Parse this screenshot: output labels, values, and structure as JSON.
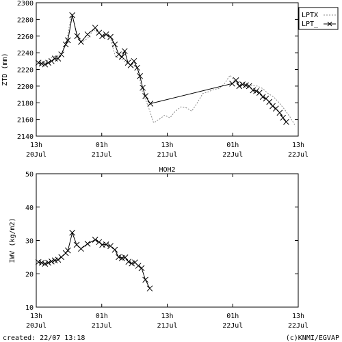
{
  "chart_data": [
    {
      "type": "line",
      "xlabel": "",
      "ylabel": "ZTD (mm)",
      "ylim": [
        2140,
        2300
      ],
      "y_ticks": [
        2140,
        2160,
        2180,
        2200,
        2220,
        2240,
        2260,
        2280,
        2300
      ],
      "x_ticks": [
        {
          "top": "13h",
          "bottom": "20Jul"
        },
        {
          "top": "01h",
          "bottom": "21Jul"
        },
        {
          "top": "13h",
          "bottom": "21Jul"
        },
        {
          "top": "01h",
          "bottom": "22Jul"
        },
        {
          "top": "13h",
          "bottom": "22Jul"
        }
      ],
      "x_unit": "hours since 20 Jul 13:00",
      "xlim": [
        0,
        48
      ],
      "legend_position": "top-right",
      "series": [
        {
          "name": "LPTX",
          "style": "dashed",
          "color": "#888888",
          "points": [
            [
              0.5,
              2230
            ],
            [
              1.5,
              2228
            ],
            [
              2.5,
              2233
            ],
            [
              3.5,
              2236
            ],
            [
              4.5,
              2238
            ],
            [
              5.5,
              2252
            ],
            [
              6.5,
              2287
            ],
            [
              7.5,
              2262
            ],
            [
              8.5,
              2253
            ],
            [
              9.5,
              2258
            ],
            [
              10.5,
              2268
            ],
            [
              11.5,
              2262
            ],
            [
              12.5,
              2262
            ],
            [
              13.5,
              2260
            ],
            [
              14.5,
              2235
            ],
            [
              15.5,
              2233
            ],
            [
              16.5,
              2228
            ],
            [
              17.5,
              2226
            ],
            [
              18.5,
              2222
            ],
            [
              19.5,
              2192
            ],
            [
              20.5,
              2176
            ],
            [
              21.5,
              2156
            ],
            [
              22.5,
              2160
            ],
            [
              23.5,
              2165
            ],
            [
              24.5,
              2162
            ],
            [
              25.5,
              2170
            ],
            [
              26.5,
              2175
            ],
            [
              27.5,
              2174
            ],
            [
              28.5,
              2170
            ],
            [
              29.5,
              2180
            ],
            [
              30.5,
              2191
            ],
            [
              31.5,
              2193
            ],
            [
              32.5,
              2196
            ],
            [
              33.5,
              2197
            ],
            [
              34.5,
              2203
            ],
            [
              35.5,
              2213
            ],
            [
              36.5,
              2205
            ],
            [
              37.5,
              2205
            ],
            [
              38.5,
              2197
            ],
            [
              39.5,
              2201
            ],
            [
              40.5,
              2200
            ],
            [
              41.5,
              2197
            ],
            [
              42.5,
              2191
            ],
            [
              43.5,
              2187
            ],
            [
              44.5,
              2180
            ],
            [
              45.5,
              2172
            ],
            [
              46.5,
              2163
            ],
            [
              47.5,
              2152
            ]
          ]
        },
        {
          "name": "LPT_",
          "style": "solid-with-cross",
          "color": "#000000",
          "points": [
            [
              0.4,
              2228
            ],
            [
              1.0,
              2227
            ],
            [
              1.6,
              2226
            ],
            [
              2.2,
              2228
            ],
            [
              2.8,
              2230
            ],
            [
              3.4,
              2233
            ],
            [
              4.0,
              2233
            ],
            [
              4.6,
              2238
            ],
            [
              5.4,
              2250
            ],
            [
              5.8,
              2255
            ],
            [
              6.6,
              2285
            ],
            [
              7.5,
              2260
            ],
            [
              8.2,
              2253
            ],
            [
              9.4,
              2262
            ],
            [
              10.8,
              2270
            ],
            [
              11.5,
              2264
            ],
            [
              12.1,
              2260
            ],
            [
              12.8,
              2262
            ],
            [
              13.6,
              2259
            ],
            [
              14.4,
              2250
            ],
            [
              15.1,
              2238
            ],
            [
              15.7,
              2235
            ],
            [
              16.2,
              2242
            ],
            [
              16.8,
              2228
            ],
            [
              17.3,
              2225
            ],
            [
              17.9,
              2230
            ],
            [
              18.5,
              2222
            ],
            [
              19.0,
              2212
            ],
            [
              19.5,
              2198
            ],
            [
              20.0,
              2188
            ],
            [
              20.9,
              2179
            ],
            [
              35.9,
              2203
            ],
            [
              36.6,
              2207
            ],
            [
              37.2,
              2200
            ],
            [
              37.8,
              2202
            ],
            [
              38.4,
              2201
            ],
            [
              39.0,
              2200
            ],
            [
              39.7,
              2195
            ],
            [
              40.3,
              2194
            ],
            [
              40.9,
              2192
            ],
            [
              41.5,
              2187
            ],
            [
              42.1,
              2185
            ],
            [
              42.7,
              2181
            ],
            [
              43.3,
              2176
            ],
            [
              43.9,
              2173
            ],
            [
              44.6,
              2168
            ],
            [
              45.2,
              2162
            ],
            [
              45.8,
              2157
            ]
          ]
        }
      ]
    },
    {
      "type": "line",
      "title": "HOH2",
      "xlabel": "",
      "ylabel": "IWV (kg/m2)",
      "ylim": [
        10,
        50
      ],
      "y_ticks": [
        10,
        20,
        30,
        40,
        50
      ],
      "x_ticks": [
        {
          "top": "13h",
          "bottom": "20Jul"
        },
        {
          "top": "01h",
          "bottom": "21Jul"
        },
        {
          "top": "13h",
          "bottom": "21Jul"
        },
        {
          "top": "01h",
          "bottom": "22Jul"
        },
        {
          "top": "13h",
          "bottom": "22Jul"
        }
      ],
      "x_unit": "hours since 20 Jul 13:00",
      "xlim": [
        0,
        48
      ],
      "series": [
        {
          "name": "IWV",
          "style": "solid-with-cross",
          "color": "#000000",
          "points": [
            [
              0.4,
              23.5
            ],
            [
              1.0,
              23.3
            ],
            [
              1.6,
              23.0
            ],
            [
              2.2,
              23.3
            ],
            [
              2.8,
              23.7
            ],
            [
              3.4,
              24.0
            ],
            [
              4.0,
              24.2
            ],
            [
              4.6,
              25.0
            ],
            [
              5.4,
              26.2
            ],
            [
              5.8,
              27.0
            ],
            [
              6.6,
              32.3
            ],
            [
              7.4,
              28.7
            ],
            [
              8.2,
              27.5
            ],
            [
              9.4,
              29.0
            ],
            [
              10.8,
              30.2
            ],
            [
              11.5,
              29.5
            ],
            [
              12.1,
              28.7
            ],
            [
              12.8,
              28.8
            ],
            [
              13.6,
              28.3
            ],
            [
              14.4,
              27.2
            ],
            [
              15.1,
              25.0
            ],
            [
              15.7,
              24.7
            ],
            [
              16.3,
              24.9
            ],
            [
              16.9,
              23.6
            ],
            [
              17.5,
              23.1
            ],
            [
              18.1,
              23.4
            ],
            [
              18.7,
              22.4
            ],
            [
              19.3,
              21.7
            ],
            [
              20.0,
              18.2
            ],
            [
              20.8,
              15.6
            ]
          ]
        }
      ]
    }
  ],
  "footer": {
    "created": "created: 22/07 13:18",
    "credit": "(c)KNMI/EGVAP"
  }
}
